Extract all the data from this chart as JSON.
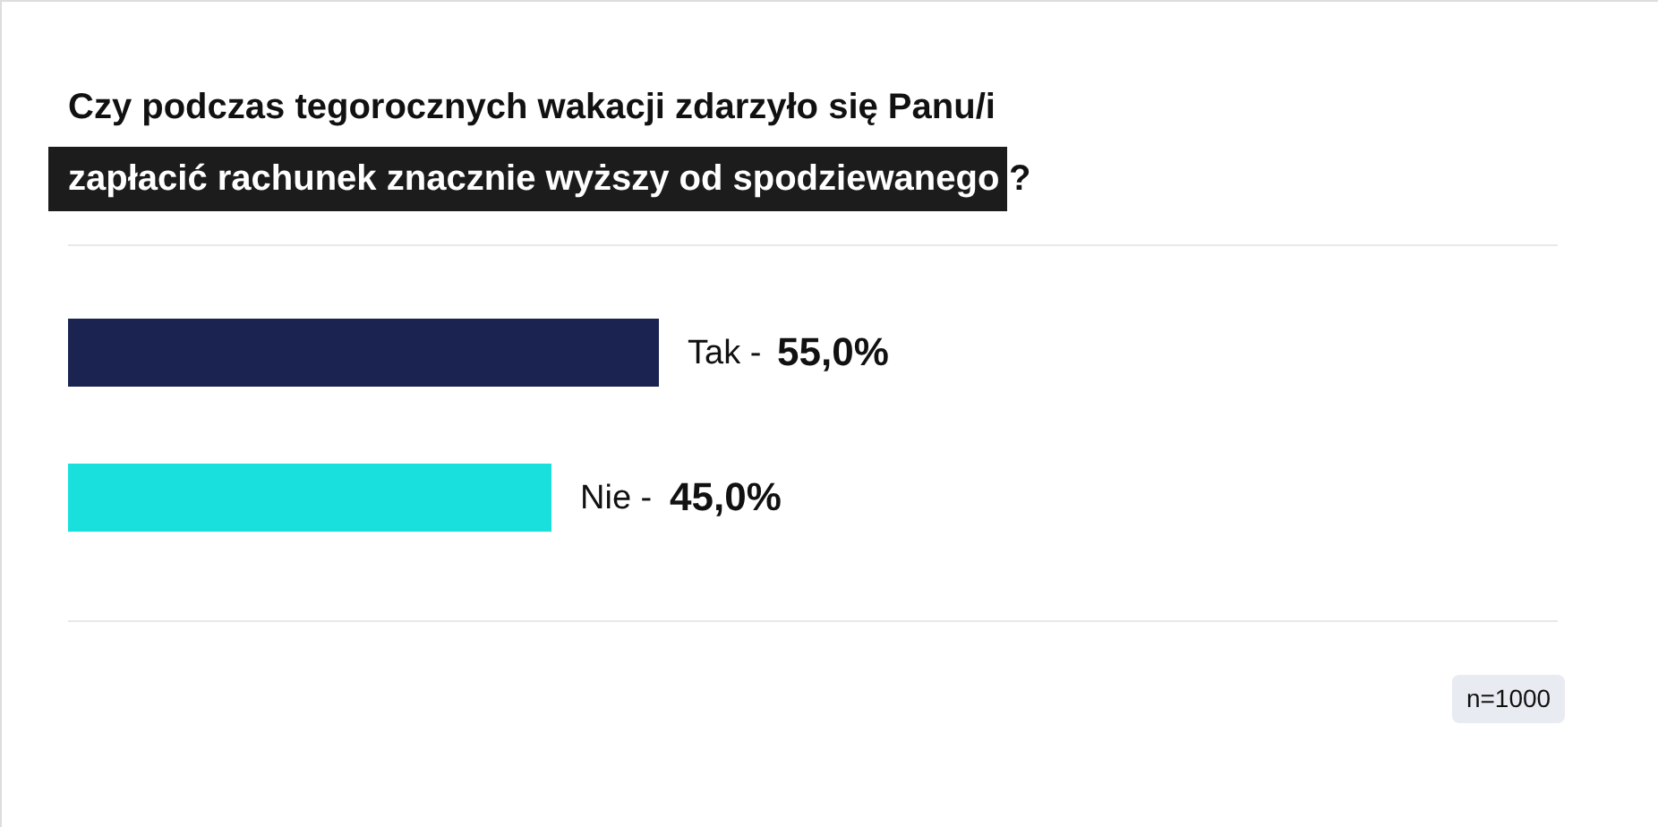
{
  "chart_data": {
    "type": "bar",
    "orientation": "horizontal",
    "title": "Czy podczas tegorocznych wakacji zdarzyło się Panu/i\nzapłacić rachunek znacznie wyższy od spodziewanego?",
    "categories": [
      "Tak -",
      "Nie -"
    ],
    "values": [
      55,
      45
    ],
    "colors": [
      "#1b2451",
      "#19e0dc"
    ],
    "value_labels": [
      "55,0%",
      "45,0%"
    ],
    "annotations": [
      "n=1000"
    ]
  }
}
